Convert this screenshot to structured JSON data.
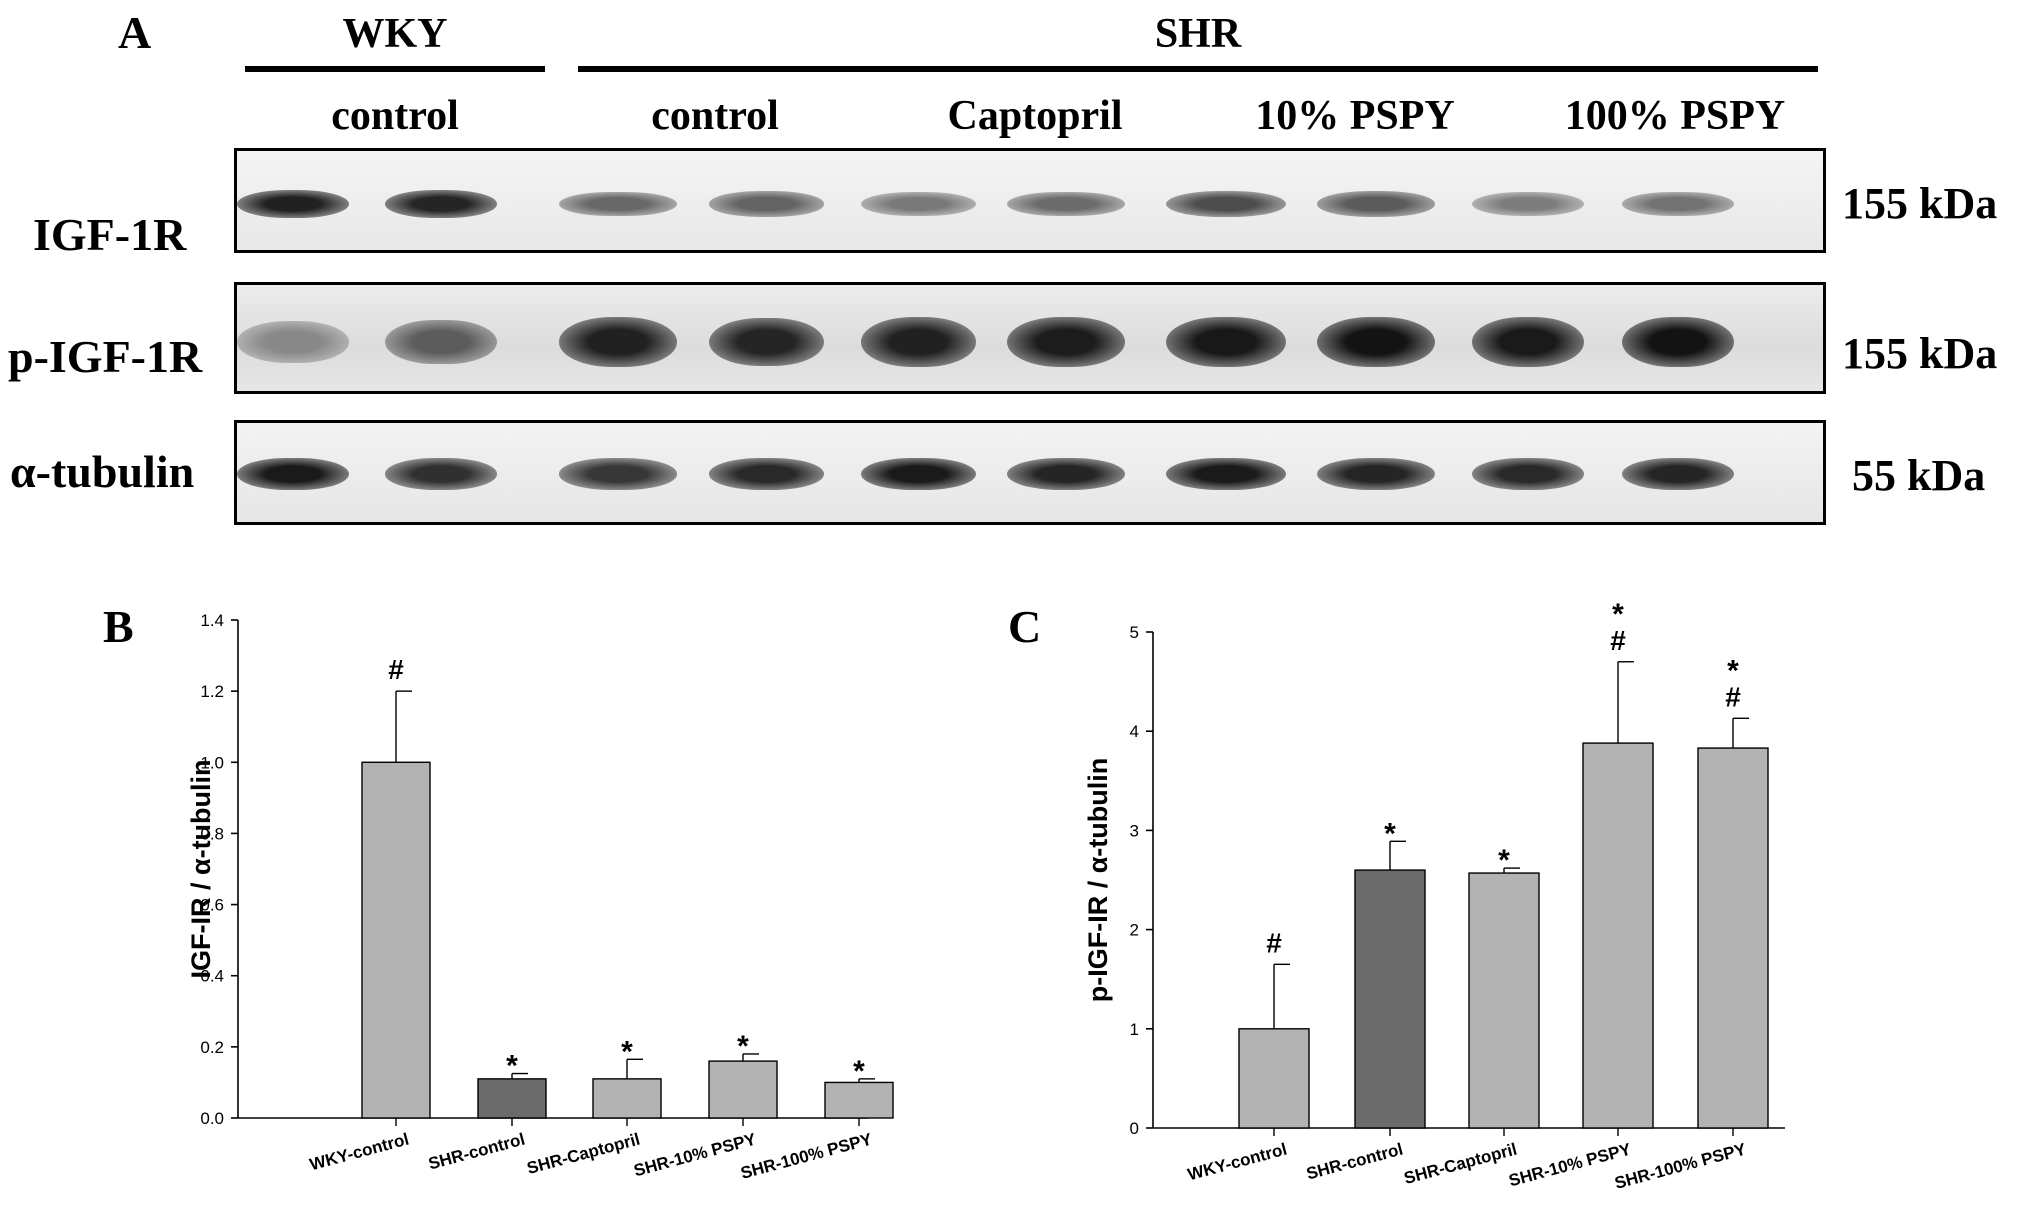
{
  "panel_a": {
    "letter": "A",
    "groups": [
      "WKY",
      "SHR"
    ],
    "lane_labels": [
      "control",
      "control",
      "Captopril",
      "10% PSPY",
      "100% PSPY"
    ],
    "rows": [
      {
        "label": "IGF-1R",
        "kda": "155 kDa",
        "band_intensity": [
          0.92,
          0.9,
          0.6,
          0.62,
          0.52,
          0.58,
          0.72,
          0.66,
          0.5,
          0.55
        ]
      },
      {
        "label": "p-IGF-1R",
        "kda": "155 kDa",
        "band_intensity": [
          0.45,
          0.65,
          0.92,
          0.9,
          0.92,
          0.94,
          0.96,
          0.98,
          0.95,
          0.98
        ]
      },
      {
        "label": "α-tubulin",
        "kda": "55 kDa",
        "band_intensity": [
          0.95,
          0.85,
          0.82,
          0.88,
          0.95,
          0.9,
          0.95,
          0.9,
          0.88,
          0.9
        ]
      }
    ]
  },
  "chart_data": [
    {
      "panel": "B",
      "type": "bar",
      "ylabel": "IGF-IR / α-tubulin",
      "categories": [
        "WKY-control",
        "SHR-control",
        "SHR-Captopril",
        "SHR-10% PSPY",
        "SHR-100% PSPY"
      ],
      "values": [
        1.0,
        0.11,
        0.11,
        0.16,
        0.1
      ],
      "errors": [
        0.2,
        0.015,
        0.055,
        0.02,
        0.01
      ],
      "annotations": [
        [
          "#"
        ],
        [
          "*"
        ],
        [
          "*"
        ],
        [
          "*"
        ],
        [
          "*"
        ]
      ],
      "ylim": [
        0,
        1.4
      ],
      "yticks": [
        "0.0",
        "0.2",
        "0.4",
        "0.6",
        "0.8",
        "1.0",
        "1.2",
        "1.4"
      ],
      "bar_colors": [
        "#b3b3b3",
        "#6b6b6b",
        "#b3b3b3",
        "#b3b3b3",
        "#b3b3b3"
      ]
    },
    {
      "panel": "C",
      "type": "bar",
      "ylabel": "p-IGF-IR / α-tubulin",
      "categories": [
        "WKY-control",
        "SHR-control",
        "SHR-Captopril",
        "SHR-10% PSPY",
        "SHR-100% PSPY"
      ],
      "values": [
        1.0,
        2.6,
        2.57,
        3.88,
        3.83
      ],
      "errors": [
        0.65,
        0.29,
        0.05,
        0.82,
        0.3
      ],
      "annotations": [
        [
          "#"
        ],
        [
          "*"
        ],
        [
          "*"
        ],
        [
          "*",
          "#"
        ],
        [
          "*",
          "#"
        ]
      ],
      "ylim": [
        0,
        5
      ],
      "yticks": [
        "0",
        "1",
        "2",
        "3",
        "4",
        "5"
      ],
      "bar_colors": [
        "#b3b3b3",
        "#6b6b6b",
        "#b3b3b3",
        "#b3b3b3",
        "#b3b3b3"
      ]
    }
  ]
}
